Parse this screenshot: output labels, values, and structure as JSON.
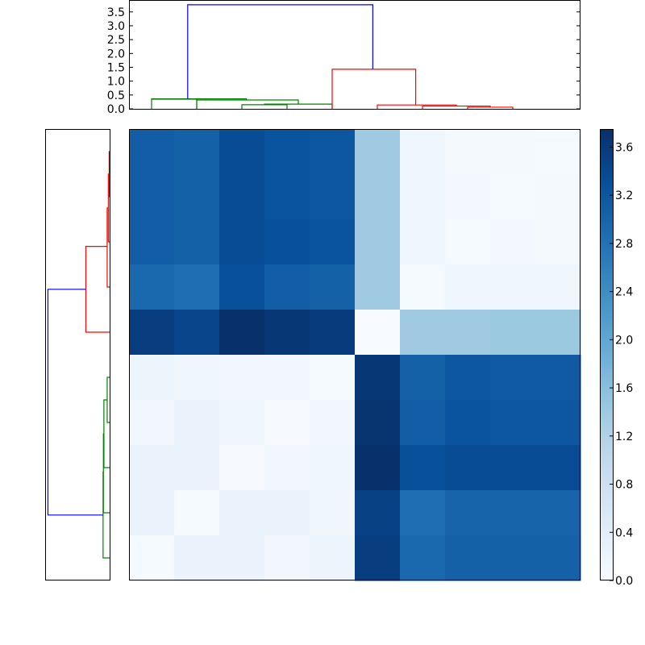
{
  "chart_data": {
    "type": "heatmap",
    "title": "",
    "description": "Clustered heatmap (distance matrix) with top and left dendrograms and a colorbar",
    "colormap": "Blues",
    "rows": 10,
    "cols": 10,
    "vmin": 0.0,
    "vmax": 3.75,
    "matrix": [
      [
        3.1,
        3.05,
        3.35,
        3.25,
        3.2,
        1.4,
        0.15,
        0.06,
        0.05,
        0.04
      ],
      [
        3.1,
        3.05,
        3.35,
        3.25,
        3.2,
        1.4,
        0.15,
        0.08,
        0.03,
        0.05
      ],
      [
        3.1,
        3.05,
        3.35,
        3.3,
        3.25,
        1.4,
        0.15,
        0.03,
        0.08,
        0.06
      ],
      [
        2.95,
        2.85,
        3.3,
        3.1,
        3.05,
        1.4,
        0.03,
        0.15,
        0.15,
        0.15
      ],
      [
        3.55,
        3.45,
        3.75,
        3.65,
        3.6,
        0.0,
        1.4,
        1.4,
        1.43,
        1.43
      ],
      [
        0.2,
        0.15,
        0.12,
        0.12,
        0.03,
        3.65,
        3.05,
        3.2,
        3.15,
        3.15
      ],
      [
        0.12,
        0.25,
        0.15,
        0.02,
        0.12,
        3.7,
        3.1,
        3.25,
        3.2,
        3.2
      ],
      [
        0.25,
        0.25,
        0.02,
        0.12,
        0.15,
        3.75,
        3.3,
        3.35,
        3.35,
        3.35
      ],
      [
        0.25,
        0.03,
        0.25,
        0.25,
        0.15,
        3.5,
        2.85,
        3.0,
        3.0,
        3.0
      ],
      [
        0.03,
        0.25,
        0.25,
        0.12,
        0.2,
        3.55,
        2.95,
        3.05,
        3.05,
        3.05
      ]
    ],
    "colorbar": {
      "ticks": [
        "0.0",
        "0.4",
        "0.8",
        "1.2",
        "1.6",
        "2.0",
        "2.4",
        "2.8",
        "3.2",
        "3.6"
      ],
      "range": [
        0.0,
        3.75
      ]
    },
    "top_dendrogram": {
      "ylim": [
        0.0,
        3.93
      ],
      "yticks": [
        "0.0",
        "0.5",
        "1.0",
        "1.5",
        "2.0",
        "2.5",
        "3.0",
        "3.5"
      ],
      "links": [
        {
          "color": "#008000",
          "x": [
            0.5,
            0.5,
            1.5,
            1.5
          ],
          "y": [
            0,
            0.35,
            0.35,
            0
          ]
        },
        {
          "color": "#008000",
          "x": [
            2.5,
            2.5,
            3.5,
            3.5
          ],
          "y": [
            0,
            0.15,
            0.15,
            0
          ]
        },
        {
          "color": "#008000",
          "x": [
            3.0,
            3.0,
            4.5,
            4.5
          ],
          "y": [
            0.15,
            0.17,
            0.17,
            0
          ]
        },
        {
          "color": "#008000",
          "x": [
            1.5,
            1.5,
            3.75,
            3.75
          ],
          "y": [
            0,
            0.32,
            0.32,
            0.17
          ]
        },
        {
          "color": "#008000",
          "x": [
            0.5,
            0.5,
            2.6,
            2.6
          ],
          "y": [
            0.35,
            0.36,
            0.36,
            0.32
          ]
        },
        {
          "color": "#ff0000",
          "x": [
            7.5,
            7.5,
            8.5,
            8.5
          ],
          "y": [
            0,
            0.06,
            0.06,
            0
          ]
        },
        {
          "color": "#ff0000",
          "x": [
            6.5,
            6.5,
            8.0,
            8.0
          ],
          "y": [
            0,
            0.1,
            0.1,
            0.06
          ]
        },
        {
          "color": "#ff0000",
          "x": [
            5.5,
            5.5,
            7.25,
            7.25
          ],
          "y": [
            0,
            0.14,
            0.14,
            0.1
          ]
        },
        {
          "color": "#ff0000",
          "x": [
            4.5,
            4.5,
            6.35,
            6.35
          ],
          "y": [
            0,
            1.43,
            1.43,
            0.14
          ]
        },
        {
          "color": "#0000ff",
          "x": [
            1.3,
            1.3,
            5.4,
            5.4
          ],
          "y": [
            0.36,
            3.76,
            3.76,
            1.43
          ]
        }
      ]
    },
    "left_dendrogram": {
      "orientation": "left",
      "note": "mirror of top dendrogram for rows; red cluster on top rows 0-4, green cluster on bottom rows 5-9"
    },
    "xlabel": "",
    "ylabel": "",
    "grid": false,
    "legend": null
  }
}
